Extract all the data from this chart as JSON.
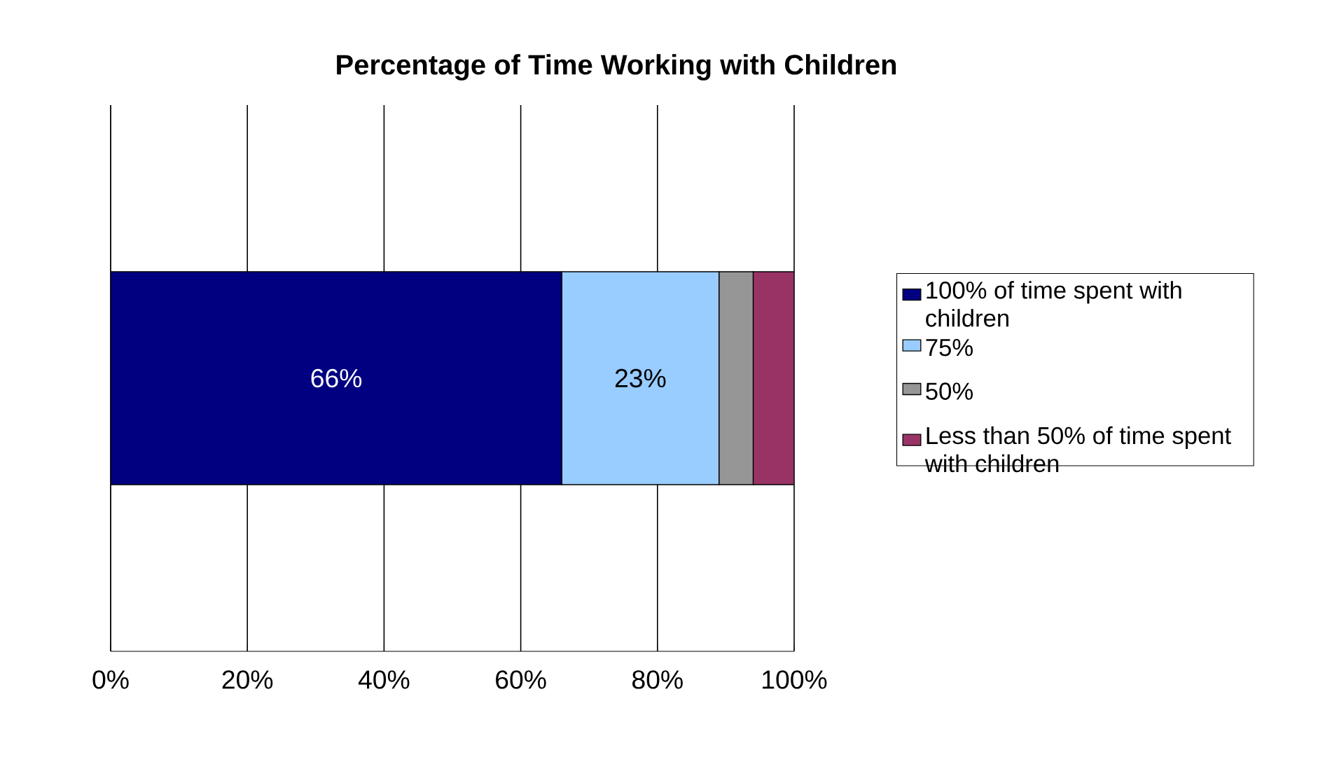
{
  "chart_data": {
    "type": "bar",
    "orientation": "horizontal",
    "stacked": true,
    "title": "Percentage of Time Working with Children",
    "categories": [
      null
    ],
    "series": [
      {
        "name": "100% of time spent with children",
        "color": "#000080",
        "values": [
          66
        ],
        "value_labels": [
          "66%"
        ]
      },
      {
        "name": "75%",
        "color": "#99ccff",
        "values": [
          23
        ],
        "value_labels": [
          "23%"
        ]
      },
      {
        "name": "50%",
        "color": "#969696",
        "values": [
          5
        ],
        "value_labels": [
          null
        ]
      },
      {
        "name": "Less than 50% of time spent with children",
        "color": "#993366",
        "values": [
          6
        ],
        "value_labels": [
          null
        ]
      }
    ],
    "xlim": [
      0,
      100
    ],
    "xticks": [
      {
        "value": 0,
        "label": "0%"
      },
      {
        "value": 20,
        "label": "20%"
      },
      {
        "value": 40,
        "label": "40%"
      },
      {
        "value": 60,
        "label": "60%"
      },
      {
        "value": 80,
        "label": "80%"
      },
      {
        "value": 100,
        "label": "100%"
      }
    ],
    "grid": "x",
    "legend": "right"
  }
}
